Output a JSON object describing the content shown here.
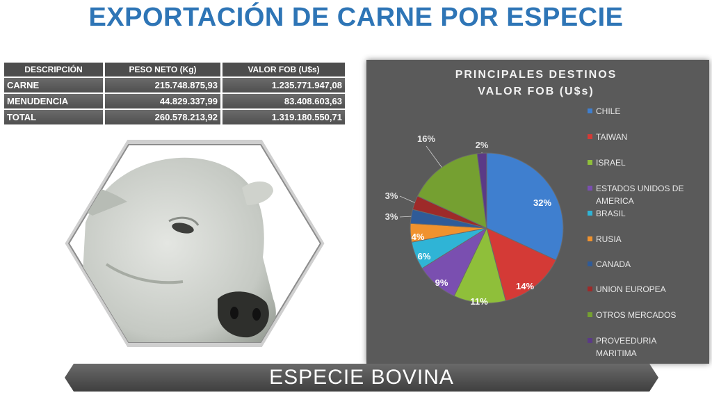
{
  "title": "EXPORTACIÓN DE CARNE POR ESPECIE",
  "table": {
    "headers": [
      "DESCRIPCIÓN",
      "PESO NETO (Kg)",
      "VALOR FOB (U$s)"
    ],
    "rows": [
      [
        "CARNE",
        "215.748.875,93",
        "1.235.771.947,08"
      ],
      [
        "MENUDENCIA",
        "44.829.337,99",
        "83.408.603,63"
      ],
      [
        "TOTAL",
        "260.578.213,92",
        "1.319.180.550,71"
      ]
    ]
  },
  "chart_data": {
    "type": "pie",
    "title": "PRINCIPALES DESTINOS\nVALOR FOB (U$s)",
    "title_lines": [
      "PRINCIPALES DESTINOS",
      "VALOR FOB (U$s)"
    ],
    "categories": [
      "CHILE",
      "TAIWAN",
      "ISRAEL",
      "ESTADOS UNIDOS DE AMERICA",
      "BRASIL",
      "RUSIA",
      "CANADA",
      "UNION EUROPEA",
      "OTROS MERCADOS",
      "PROVEEDURIA MARITIMA"
    ],
    "legend_lines": [
      [
        "CHILE"
      ],
      [
        "TAIWAN"
      ],
      [
        "ISRAEL"
      ],
      [
        "ESTADOS UNIDOS DE",
        "AMERICA"
      ],
      [
        "BRASIL"
      ],
      [
        "RUSIA"
      ],
      [
        "CANADA"
      ],
      [
        "UNION EUROPEA"
      ],
      [
        "OTROS MERCADOS"
      ],
      [
        "PROVEEDURIA",
        "MARITIMA"
      ]
    ],
    "values": [
      32,
      14,
      11,
      9,
      6,
      4,
      3,
      3,
      16,
      2
    ],
    "labels": [
      "32%",
      "14%",
      "11%",
      "9%",
      "6%",
      "4%",
      "3%",
      "3%",
      "16%",
      "2%"
    ],
    "colors": [
      "#3f7fcf",
      "#d43a36",
      "#8fbf3a",
      "#7a4fb0",
      "#2fb4d6",
      "#f0922e",
      "#2f5b98",
      "#9e2a29",
      "#75a031",
      "#5b3a86"
    ],
    "legend_position": "right"
  },
  "banner": {
    "text": "ESPECIE  BOVINA"
  }
}
